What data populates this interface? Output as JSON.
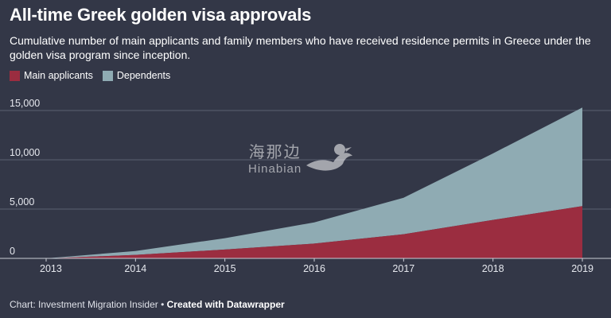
{
  "title": "All-time Greek golden visa approvals",
  "subtitle": "Cumulative number of main applicants and family members who have received residence permits in Greece under the golden visa program since inception.",
  "legend": [
    {
      "label": "Main applicants",
      "color": "#9b2d40"
    },
    {
      "label": "Dependents",
      "color": "#8fabb3"
    }
  ],
  "watermark": {
    "chinese": "海那边",
    "english": "Hinabian",
    "icon": "bird-logo-icon"
  },
  "footer": {
    "source": "Chart: Investment Migration Insider • ",
    "credit": "Created with Datawrapper"
  },
  "chart_data": {
    "type": "area",
    "stacked": true,
    "title": "All-time Greek golden visa approvals",
    "x": [
      2013,
      2014,
      2015,
      2016,
      2017,
      2018,
      2019
    ],
    "x_tick_labels": [
      "2013",
      "2014",
      "2015",
      "2016",
      "2017",
      "2018",
      "2019"
    ],
    "ylim": [
      0,
      15000
    ],
    "y_ticks": [
      0,
      5000,
      10000,
      15000
    ],
    "y_tick_labels": [
      "0",
      "5,000",
      "10,000",
      "15,000"
    ],
    "grid": true,
    "legend_position": "top-left",
    "series": [
      {
        "name": "Main applicants",
        "color": "#9b2d40",
        "values": [
          0,
          350,
          900,
          1500,
          2450,
          3900,
          5300
        ]
      },
      {
        "name": "Dependents",
        "color": "#8fabb3",
        "values": [
          0,
          400,
          1150,
          2150,
          3700,
          6750,
          10000
        ]
      }
    ]
  }
}
